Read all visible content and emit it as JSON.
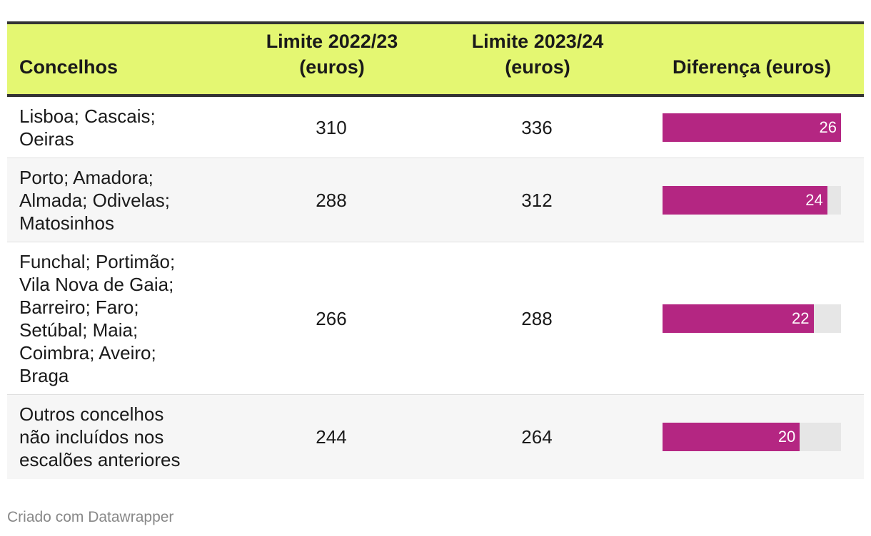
{
  "header": {
    "concelhos": "Concelhos",
    "limite_2022_l1": "Limite 2022/23",
    "limite_2022_l2": "(euros)",
    "limite_2023_l1": "Limite 2023/24",
    "limite_2023_l2": "(euros)",
    "diferenca": "Diferença (euros)"
  },
  "rows": [
    {
      "name_lines": [
        "Lisboa; Cascais;",
        "Oeiras"
      ],
      "limite_2022": "310",
      "limite_2023": "336",
      "diferenca": "26"
    },
    {
      "name_lines": [
        "Porto; Amadora;",
        "Almada; Odivelas;",
        "Matosinhos"
      ],
      "limite_2022": "288",
      "limite_2023": "312",
      "diferenca": "24"
    },
    {
      "name_lines": [
        "Funchal; Portimão;",
        "Vila Nova de Gaia;",
        "Barreiro; Faro;",
        "Setúbal; Maia;",
        "Coimbra; Aveiro;",
        "Braga"
      ],
      "limite_2022": "266",
      "limite_2023": "288",
      "diferenca": "22"
    },
    {
      "name_lines": [
        "Outros concelhos",
        "não incluídos nos",
        "escalões anteriores"
      ],
      "limite_2022": "244",
      "limite_2023": "264",
      "diferenca": "20"
    }
  ],
  "chart_data": {
    "type": "table",
    "columns": [
      "Concelhos",
      "Limite 2022/23 (euros)",
      "Limite 2023/24 (euros)",
      "Diferença (euros)"
    ],
    "categories": [
      "Lisboa; Cascais; Oeiras",
      "Porto; Amadora; Almada; Odivelas; Matosinhos",
      "Funchal; Portimão; Vila Nova de Gaia; Barreiro; Faro; Setúbal; Maia; Coimbra; Aveiro; Braga",
      "Outros concelhos não incluídos nos escalões anteriores"
    ],
    "series": [
      {
        "name": "Limite 2022/23 (euros)",
        "values": [
          310,
          288,
          266,
          244
        ]
      },
      {
        "name": "Limite 2023/24 (euros)",
        "values": [
          336,
          312,
          288,
          264
        ]
      },
      {
        "name": "Diferença (euros)",
        "values": [
          26,
          24,
          22,
          20
        ]
      }
    ],
    "bar_max": 26,
    "colors": {
      "header_bg": "#e4f772",
      "bar": "#b42682",
      "bar_track": "#e6e6e6"
    }
  },
  "footer": {
    "credit": "Criado com Datawrapper"
  }
}
